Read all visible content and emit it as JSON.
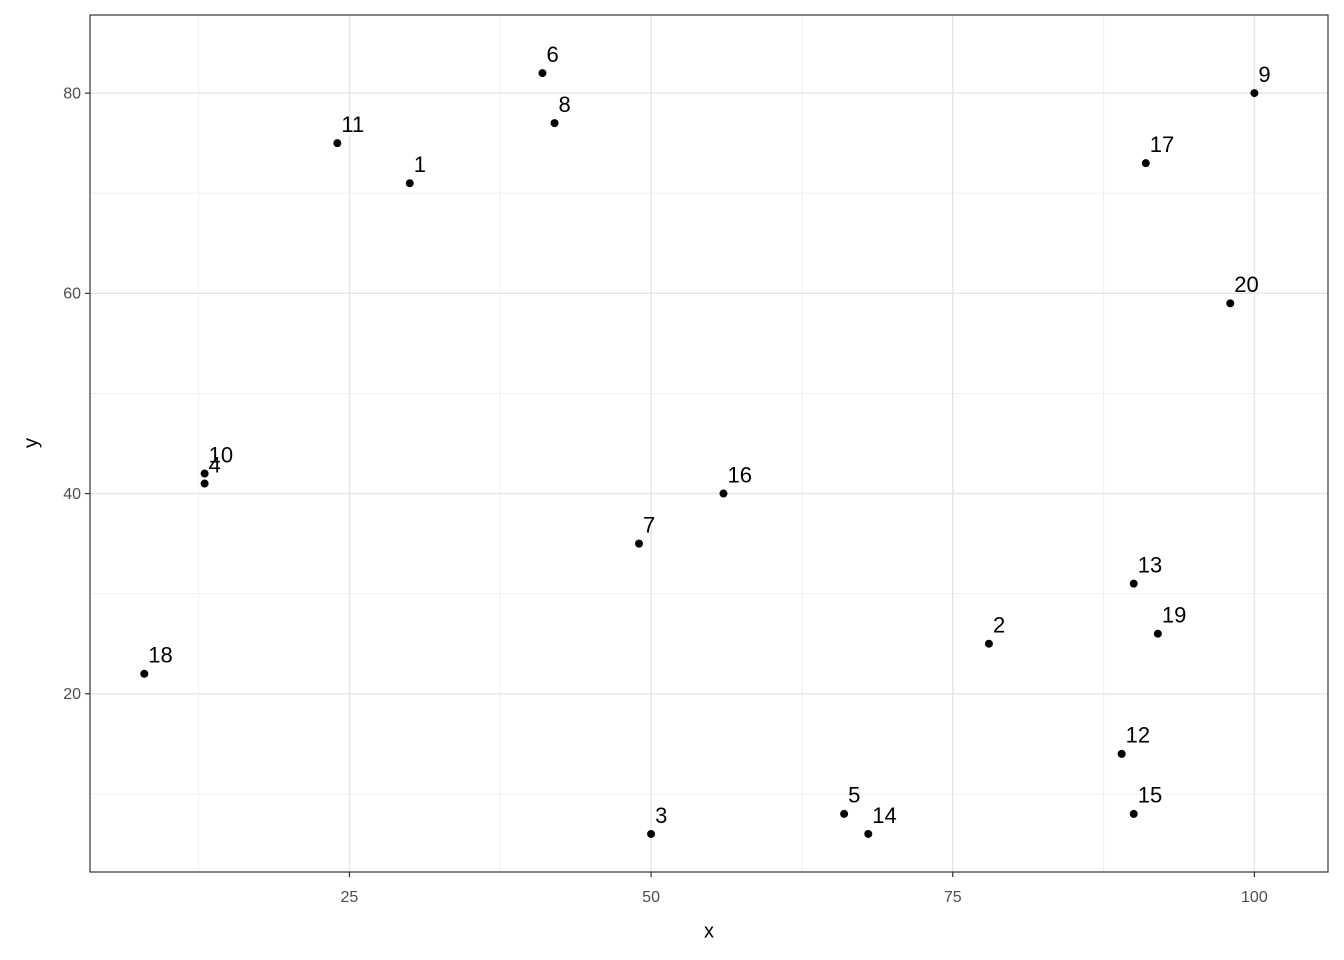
{
  "chart_data": {
    "type": "scatter",
    "x_label": "x",
    "y_label": "y",
    "labels": [
      "1",
      "2",
      "3",
      "4",
      "5",
      "6",
      "7",
      "8",
      "9",
      "10",
      "11",
      "12",
      "13",
      "14",
      "15",
      "16",
      "17",
      "18",
      "19",
      "20"
    ],
    "x": [
      30,
      78,
      50,
      13,
      66,
      41,
      49,
      42,
      100,
      13,
      24,
      89,
      90,
      68,
      90,
      56,
      91,
      8,
      92,
      98
    ],
    "y": [
      71,
      25,
      6,
      41,
      8,
      82,
      35,
      77,
      80,
      42,
      75,
      14,
      31,
      6,
      8,
      40,
      73,
      22,
      26,
      59
    ],
    "color": "#000000",
    "xlim": [
      3.5,
      106.1
    ],
    "ylim": [
      2.2,
      87.8
    ],
    "xticks": [
      25,
      50,
      75,
      100
    ],
    "yticks": [
      20,
      40,
      60,
      80
    ],
    "xminorticks": [
      12.5,
      37.5,
      62.5,
      87.5
    ],
    "yminorticks": [
      10,
      30,
      50,
      70
    ],
    "grid": true
  }
}
